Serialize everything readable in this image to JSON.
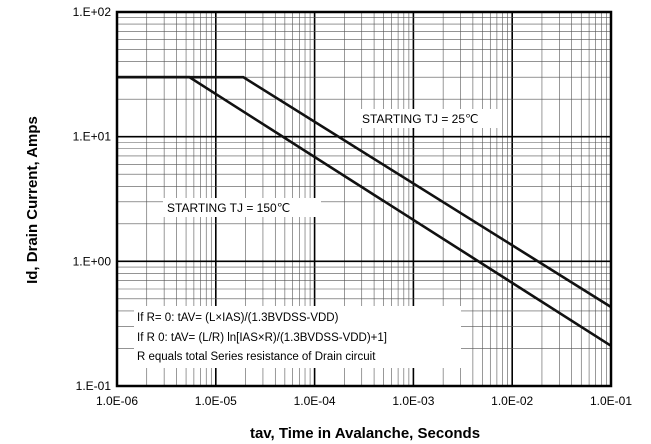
{
  "chart_data": {
    "type": "line",
    "title": "",
    "xlabel": "tav, Time in Avalanche, Seconds",
    "ylabel": "Id, Drain Current, Amps",
    "x_scale": "log",
    "y_scale": "log",
    "xlim": [
      1e-06,
      0.1
    ],
    "ylim": [
      0.1,
      100
    ],
    "grid": true,
    "x_ticks": [
      {
        "value": 1e-06,
        "label": "1.0E-06"
      },
      {
        "value": 1e-05,
        "label": "1.0E-05"
      },
      {
        "value": 0.0001,
        "label": "1.0E-04"
      },
      {
        "value": 0.001,
        "label": "1.0E-03"
      },
      {
        "value": 0.01,
        "label": "1.0E-02"
      },
      {
        "value": 0.1,
        "label": "1.0E-01"
      }
    ],
    "y_ticks": [
      {
        "value": 0.1,
        "label": "1.E-01"
      },
      {
        "value": 1,
        "label": "1.E+00"
      },
      {
        "value": 10,
        "label": "1.E+01"
      },
      {
        "value": 100,
        "label": "1.E+02"
      }
    ],
    "series": [
      {
        "x": [
          1e-06,
          1.9e-05,
          0.1
        ],
        "y": [
          30,
          30,
          0.43
        ]
      },
      {
        "x": [
          1e-06,
          5.4e-06,
          0.1
        ],
        "y": [
          30,
          30,
          0.21
        ]
      }
    ],
    "annotations": [
      {
        "text": "STARTING TJ = 25℃"
      },
      {
        "text": "STARTING TJ = 150℃"
      }
    ],
    "notes": [
      "If R= 0: tAV= (L×IAS)/(1.3BVDSS-VDD)",
      "If R 0: tAV= (L/R) ln[IAS×R)/(1.3BVDSS-VDD)+1]",
      "R equals total Series resistance of Drain circuit"
    ]
  }
}
